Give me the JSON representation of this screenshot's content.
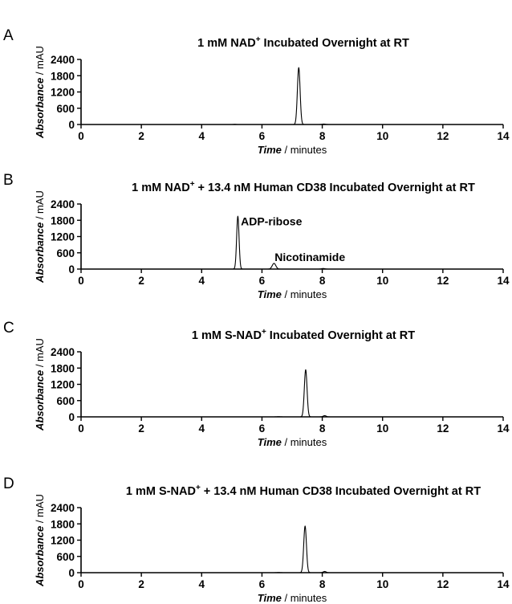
{
  "chart_data": [
    {
      "type": "line",
      "panel": "A",
      "title_parts": [
        "1 mM NAD",
        "+",
        " Incubated Overnight at RT"
      ],
      "xlabel": "Time",
      "xlabel_suffix": " / minutes",
      "ylabel": "Absorbance",
      "ylabel_suffix": " / mAU",
      "xlim": [
        0,
        14
      ],
      "ylim": [
        0,
        2400
      ],
      "xticks": [
        0,
        2,
        4,
        6,
        8,
        10,
        12,
        14
      ],
      "yticks": [
        0,
        600,
        1200,
        1800,
        2400
      ],
      "grid": false,
      "peaks": [
        {
          "x": 5.1,
          "height": 8,
          "width": 0.03
        },
        {
          "x": 7.22,
          "height": 2100,
          "width": 0.045
        },
        {
          "x": 8.05,
          "height": 18,
          "width": 0.05
        }
      ],
      "annotations": []
    },
    {
      "type": "line",
      "panel": "B",
      "title_parts": [
        "1 mM NAD",
        "+",
        " + 13.4 nM Human CD38 Incubated Overnight at RT"
      ],
      "xlabel": "Time",
      "xlabel_suffix": " / minutes",
      "ylabel": "Absorbance",
      "ylabel_suffix": " / mAU",
      "xlim": [
        0,
        14
      ],
      "ylim": [
        0,
        2400
      ],
      "xticks": [
        0,
        2,
        4,
        6,
        8,
        10,
        12,
        14
      ],
      "yticks": [
        0,
        600,
        1200,
        1800,
        2400
      ],
      "grid": false,
      "peaks": [
        {
          "x": 5.2,
          "height": 1950,
          "width": 0.04
        },
        {
          "x": 6.4,
          "height": 210,
          "width": 0.06
        },
        {
          "x": 8.03,
          "height": 22,
          "width": 0.05
        }
      ],
      "annotations": [
        {
          "text": "ADP-ribose",
          "x": 5.3,
          "y": 1620
        },
        {
          "text": "Nicotinamide",
          "x": 6.42,
          "y": 300
        }
      ]
    },
    {
      "type": "line",
      "panel": "C",
      "title_parts": [
        "1 mM S-NAD",
        "+",
        " Incubated Overnight at RT"
      ],
      "xlabel": "Time",
      "xlabel_suffix": " / minutes",
      "ylabel": "Absorbance",
      "ylabel_suffix": " / mAU",
      "xlim": [
        0,
        14
      ],
      "ylim": [
        0,
        2400
      ],
      "xticks": [
        0,
        2,
        4,
        6,
        8,
        10,
        12,
        14
      ],
      "yticks": [
        0,
        600,
        1200,
        1800,
        2400
      ],
      "grid": false,
      "peaks": [
        {
          "x": 6.55,
          "height": 8,
          "width": 0.05
        },
        {
          "x": 7.45,
          "height": 1740,
          "width": 0.045
        },
        {
          "x": 8.08,
          "height": 45,
          "width": 0.05
        }
      ],
      "annotations": []
    },
    {
      "type": "line",
      "panel": "D",
      "title_parts": [
        "1 mM S-NAD",
        "+",
        " + 13.4 nM Human CD38 Incubated Overnight at RT"
      ],
      "xlabel": "Time",
      "xlabel_suffix": " / minutes",
      "ylabel": "Absorbance",
      "ylabel_suffix": " / mAU",
      "xlim": [
        0,
        14
      ],
      "ylim": [
        0,
        2400
      ],
      "xticks": [
        0,
        2,
        4,
        6,
        8,
        10,
        12,
        14
      ],
      "yticks": [
        0,
        600,
        1200,
        1800,
        2400
      ],
      "grid": false,
      "peaks": [
        {
          "x": 6.55,
          "height": 8,
          "width": 0.05
        },
        {
          "x": 7.43,
          "height": 1720,
          "width": 0.045
        },
        {
          "x": 8.08,
          "height": 45,
          "width": 0.05
        }
      ],
      "annotations": []
    }
  ]
}
